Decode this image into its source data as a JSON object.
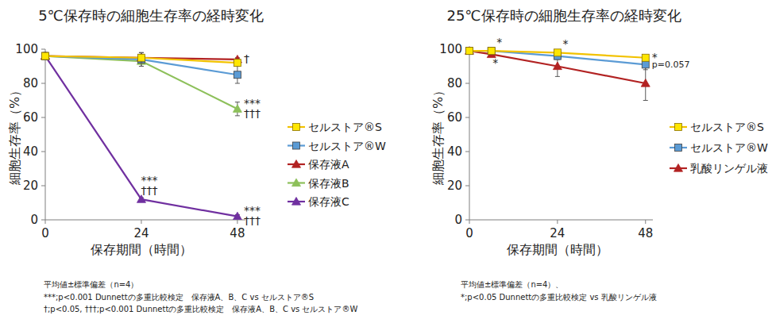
{
  "chart_data": [
    {
      "type": "line",
      "title": "5℃保存時の細胞生存率の経時変化",
      "xlabel": "保存期間（時間）",
      "ylabel": "細胞生存率（%）",
      "x": [
        0,
        24,
        48
      ],
      "xlim": [
        0,
        50
      ],
      "xticks": [
        0,
        24,
        48
      ],
      "ylim": [
        0,
        100
      ],
      "yticks": [
        0,
        20,
        40,
        60,
        80,
        100
      ],
      "grid": false,
      "legend": "right",
      "series": [
        {
          "name": "セルストア®S",
          "color": "#ffe600",
          "marker": "square",
          "values": [
            96,
            95,
            92
          ],
          "errors": [
            2,
            3,
            2
          ]
        },
        {
          "name": "セルストア®W",
          "color": "#5b9bd5",
          "marker": "square",
          "values": [
            96,
            94,
            85
          ],
          "errors": [
            2,
            4,
            5
          ]
        },
        {
          "name": "保存液A",
          "color": "#b22222",
          "marker": "triangle",
          "values": [
            96,
            95,
            94
          ],
          "errors": [
            1,
            2,
            1
          ]
        },
        {
          "name": "保存液B",
          "color": "#8dc05a",
          "marker": "triangle",
          "values": [
            96,
            93,
            65
          ],
          "errors": [
            2,
            3,
            4
          ]
        },
        {
          "name": "保存液C",
          "color": "#7030a0",
          "marker": "triangle",
          "values": [
            96,
            12,
            2
          ],
          "errors": [
            1,
            1,
            1
          ]
        }
      ],
      "annotations": [
        {
          "x": 24,
          "series": "保存液C",
          "position": "above",
          "lines": [
            "***",
            "†††"
          ]
        },
        {
          "x": 48,
          "series": "保存液B",
          "position": "right",
          "lines": [
            "***",
            "†††"
          ]
        },
        {
          "x": 48,
          "series": "保存液C",
          "position": "right",
          "lines": [
            "***",
            "†††"
          ]
        },
        {
          "x": 48,
          "series": "保存液A",
          "position": "right",
          "lines": [
            "†"
          ]
        }
      ],
      "notes": [
        "平均値±標準偏差（n=4）",
        "***;p<0.001 Dunnettの多重比較検定　保存液A、B、C vs セルストア®S",
        "†;p<0.05, †††;p<0.001 Dunnettの多重比較検定　保存液A、B、C vs セルストア®W"
      ]
    },
    {
      "type": "line",
      "title": "25℃保存時の細胞生存率の経時変化",
      "xlabel": "保存期間（時間）",
      "ylabel": "細胞生存率（%）",
      "x": [
        0,
        6,
        24,
        48
      ],
      "xlim": [
        0,
        50
      ],
      "xticks": [
        0,
        24,
        48
      ],
      "ylim": [
        0,
        100
      ],
      "yticks": [
        0,
        20,
        40,
        60,
        80,
        100
      ],
      "grid": false,
      "legend": "right",
      "series": [
        {
          "name": "セルストア®S",
          "color": "#ffe600",
          "marker": "square",
          "values": [
            99,
            99,
            98,
            95
          ],
          "errors": [
            1,
            1,
            1,
            1
          ]
        },
        {
          "name": "セルストア®W",
          "color": "#5b9bd5",
          "marker": "square",
          "values": [
            99,
            99,
            96,
            91
          ],
          "errors": [
            1,
            1,
            2,
            3
          ]
        },
        {
          "name": "乳酸リンゲル液",
          "color": "#b22222",
          "marker": "triangle",
          "values": [
            99,
            97,
            90,
            80
          ],
          "errors": [
            1,
            1,
            6,
            10
          ]
        }
      ],
      "annotations": [
        {
          "x": 6,
          "series": "セルストア®S",
          "position": "above",
          "lines": [
            "*"
          ]
        },
        {
          "x": 6,
          "series": "乳酸リンゲル液",
          "position": "below",
          "lines": [
            "*"
          ]
        },
        {
          "x": 24,
          "series": "セルストア®S",
          "position": "above",
          "lines": [
            "*"
          ]
        },
        {
          "x": 48,
          "series": "セルストア®S",
          "position": "right",
          "lines": [
            "*"
          ]
        },
        {
          "x": 48,
          "series": "セルストア®W",
          "position": "right",
          "lines": [
            "p=0.057"
          ]
        }
      ],
      "notes": [
        "平均値±標準偏差（n=4）、",
        "*;p<0.05 Dunnettの多重比較検定 vs 乳酸リンゲル液"
      ]
    }
  ]
}
